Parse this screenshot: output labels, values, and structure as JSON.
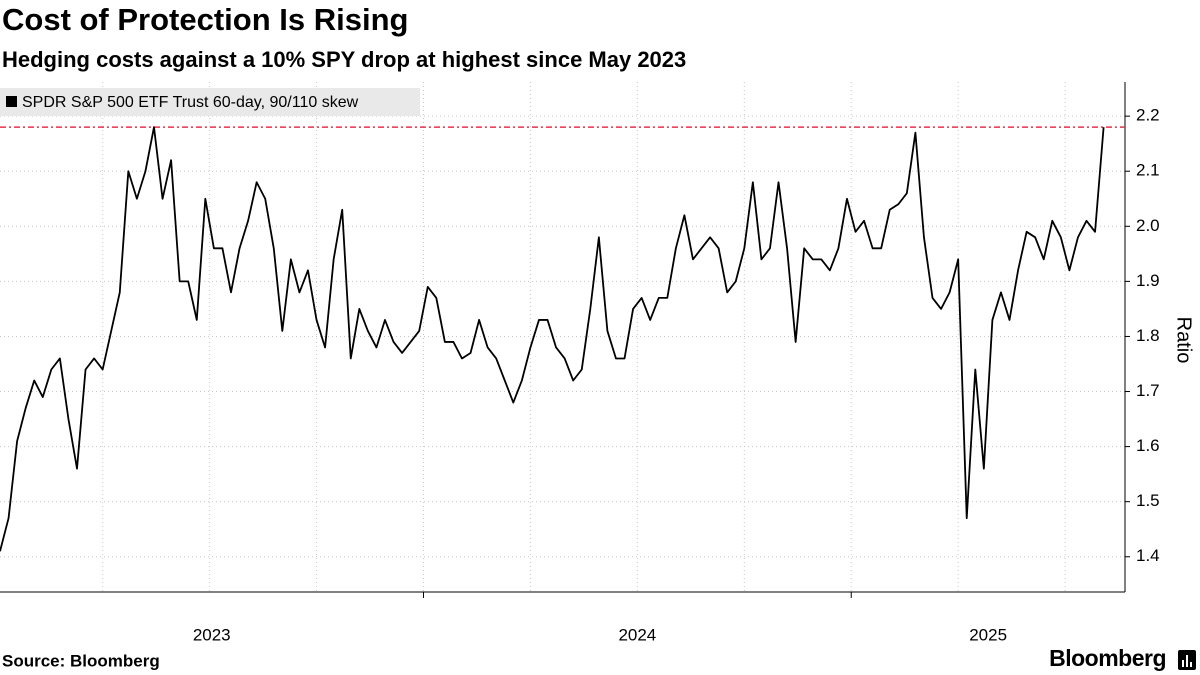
{
  "chart_data": {
    "type": "line",
    "title": "Cost of Protection Is Rising",
    "subtitle": "Hedging costs against a 10% SPY drop at highest since May 2023",
    "source": "Source: Bloomberg",
    "brand": "Bloomberg",
    "ylabel": "Ratio",
    "yaxis_side": "right",
    "legend": "top-left",
    "grid": true,
    "xlim": [
      2023.01,
      2025.64
    ],
    "ylim": [
      1.336,
      2.262
    ],
    "xticks": [
      2023,
      2024,
      2025
    ],
    "xgrid": [
      2023.25,
      2023.5,
      2023.75,
      2024,
      2024.25,
      2024.5,
      2024.75,
      2025,
      2025.25,
      2025.5
    ],
    "yticks": [
      1.4,
      1.5,
      1.6,
      1.7,
      1.8,
      1.9,
      {
        "value": 2,
        "label": "2.0"
      },
      2.1,
      2.2
    ],
    "reference_line": {
      "value": 2.18,
      "color": "#e8314b"
    },
    "series": [
      {
        "name": "SPDR S&P 500 ETF Trust 60-day, 90/110 skew",
        "color": "#000000",
        "x": [
          2023.01,
          2023.03,
          2023.05,
          2023.07,
          2023.09,
          2023.11,
          2023.13,
          2023.15,
          2023.17,
          2023.19,
          2023.21,
          2023.23,
          2023.25,
          2023.27,
          2023.29,
          2023.31,
          2023.33,
          2023.35,
          2023.37,
          2023.39,
          2023.41,
          2023.43,
          2023.45,
          2023.47,
          2023.49,
          2023.51,
          2023.53,
          2023.55,
          2023.57,
          2023.59,
          2023.61,
          2023.63,
          2023.65,
          2023.67,
          2023.69,
          2023.71,
          2023.73,
          2023.75,
          2023.77,
          2023.79,
          2023.81,
          2023.83,
          2023.85,
          2023.87,
          2023.89,
          2023.91,
          2023.93,
          2023.95,
          2023.97,
          2023.99,
          2024.01,
          2024.03,
          2024.05,
          2024.07,
          2024.09,
          2024.11,
          2024.13,
          2024.15,
          2024.17,
          2024.19,
          2024.21,
          2024.23,
          2024.25,
          2024.27,
          2024.29,
          2024.31,
          2024.33,
          2024.35,
          2024.37,
          2024.39,
          2024.41,
          2024.43,
          2024.45,
          2024.47,
          2024.49,
          2024.51,
          2024.53,
          2024.55,
          2024.57,
          2024.59,
          2024.61,
          2024.63,
          2024.65,
          2024.67,
          2024.69,
          2024.71,
          2024.73,
          2024.75,
          2024.77,
          2024.79,
          2024.81,
          2024.83,
          2024.85,
          2024.87,
          2024.89,
          2024.91,
          2024.93,
          2024.95,
          2024.97,
          2024.99,
          2025.01,
          2025.03,
          2025.05,
          2025.07,
          2025.09,
          2025.11,
          2025.13,
          2025.15,
          2025.17,
          2025.19,
          2025.21,
          2025.23,
          2025.25,
          2025.27,
          2025.29,
          2025.31,
          2025.33,
          2025.35,
          2025.37,
          2025.39,
          2025.41,
          2025.43,
          2025.45,
          2025.47,
          2025.49,
          2025.51,
          2025.53,
          2025.55,
          2025.57,
          2025.59
        ],
        "values": [
          1.41,
          1.47,
          1.61,
          1.67,
          1.72,
          1.69,
          1.74,
          1.76,
          1.65,
          1.56,
          1.74,
          1.76,
          1.74,
          1.81,
          1.88,
          2.1,
          2.05,
          2.1,
          2.18,
          2.05,
          2.12,
          1.9,
          1.9,
          1.83,
          2.05,
          1.96,
          1.96,
          1.88,
          1.96,
          2.01,
          2.08,
          2.05,
          1.96,
          1.81,
          1.94,
          1.88,
          1.92,
          1.83,
          1.78,
          1.94,
          2.03,
          1.76,
          1.85,
          1.81,
          1.78,
          1.83,
          1.79,
          1.77,
          1.79,
          1.81,
          1.89,
          1.87,
          1.79,
          1.79,
          1.76,
          1.77,
          1.83,
          1.78,
          1.76,
          1.72,
          1.68,
          1.72,
          1.78,
          1.83,
          1.83,
          1.78,
          1.76,
          1.72,
          1.74,
          1.85,
          1.98,
          1.81,
          1.76,
          1.76,
          1.85,
          1.87,
          1.83,
          1.87,
          1.87,
          1.96,
          2.02,
          1.94,
          1.96,
          1.98,
          1.96,
          1.88,
          1.9,
          1.96,
          2.08,
          1.94,
          1.96,
          2.08,
          1.96,
          1.79,
          1.96,
          1.94,
          1.94,
          1.92,
          1.96,
          2.05,
          1.99,
          2.01,
          1.96,
          1.96,
          2.03,
          2.04,
          2.06,
          2.17,
          1.98,
          1.87,
          1.85,
          1.88,
          1.94,
          1.47,
          1.74,
          1.56,
          1.83,
          1.88,
          1.83,
          1.92,
          1.99,
          1.98,
          1.94,
          2.01,
          1.98,
          1.92,
          1.98,
          2.01,
          1.99,
          2.18
        ]
      }
    ]
  }
}
